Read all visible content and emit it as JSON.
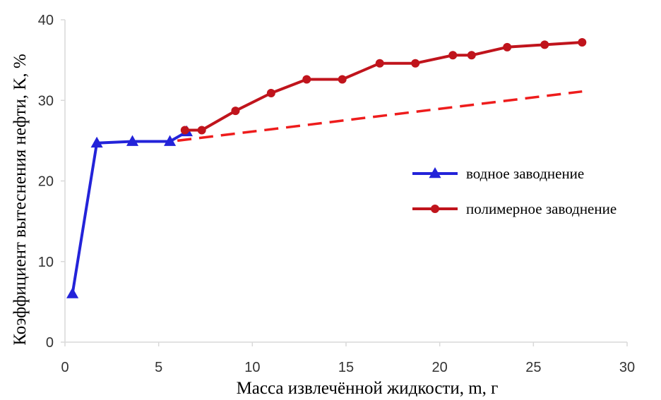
{
  "chart_data": {
    "type": "line",
    "xlabel": "Масса извлечённой жидкости, m, г",
    "ylabel": "Коэффициент вытеснения нефти, K, %",
    "xlim": [
      0,
      30
    ],
    "ylim": [
      0,
      40
    ],
    "xticks": [
      0,
      5,
      10,
      15,
      20,
      25,
      30
    ],
    "yticks": [
      0,
      10,
      20,
      30,
      40
    ],
    "xtick_labels": [
      "0",
      "5",
      "10",
      "15",
      "20",
      "25",
      "30"
    ],
    "ytick_labels": [
      "0",
      "10",
      "20",
      "30",
      "40"
    ],
    "grid": false,
    "legend_position": "right",
    "series": [
      {
        "name": "водное заводнение",
        "color": "#2323d9",
        "marker": "triangle",
        "line_style": "solid",
        "x": [
          0.4,
          1.7,
          3.6,
          5.6,
          6.5
        ],
        "y": [
          6.0,
          24.7,
          24.9,
          24.9,
          26.1
        ]
      },
      {
        "name": "полимерное заводнение",
        "color": "#c0141c",
        "marker": "circle",
        "line_style": "solid",
        "x": [
          6.4,
          7.3,
          9.1,
          11.0,
          12.9,
          14.8,
          16.8,
          18.7,
          20.7,
          21.7,
          23.6,
          25.6,
          27.6
        ],
        "y": [
          26.3,
          26.3,
          28.7,
          30.9,
          32.6,
          32.6,
          34.6,
          34.6,
          35.6,
          35.6,
          36.6,
          36.9,
          37.2
        ]
      },
      {
        "color": "#ee1c1c",
        "marker": "none",
        "line_style": "dashed",
        "x": [
          6.0,
          27.6
        ],
        "y": [
          25.0,
          31.1
        ]
      }
    ]
  }
}
